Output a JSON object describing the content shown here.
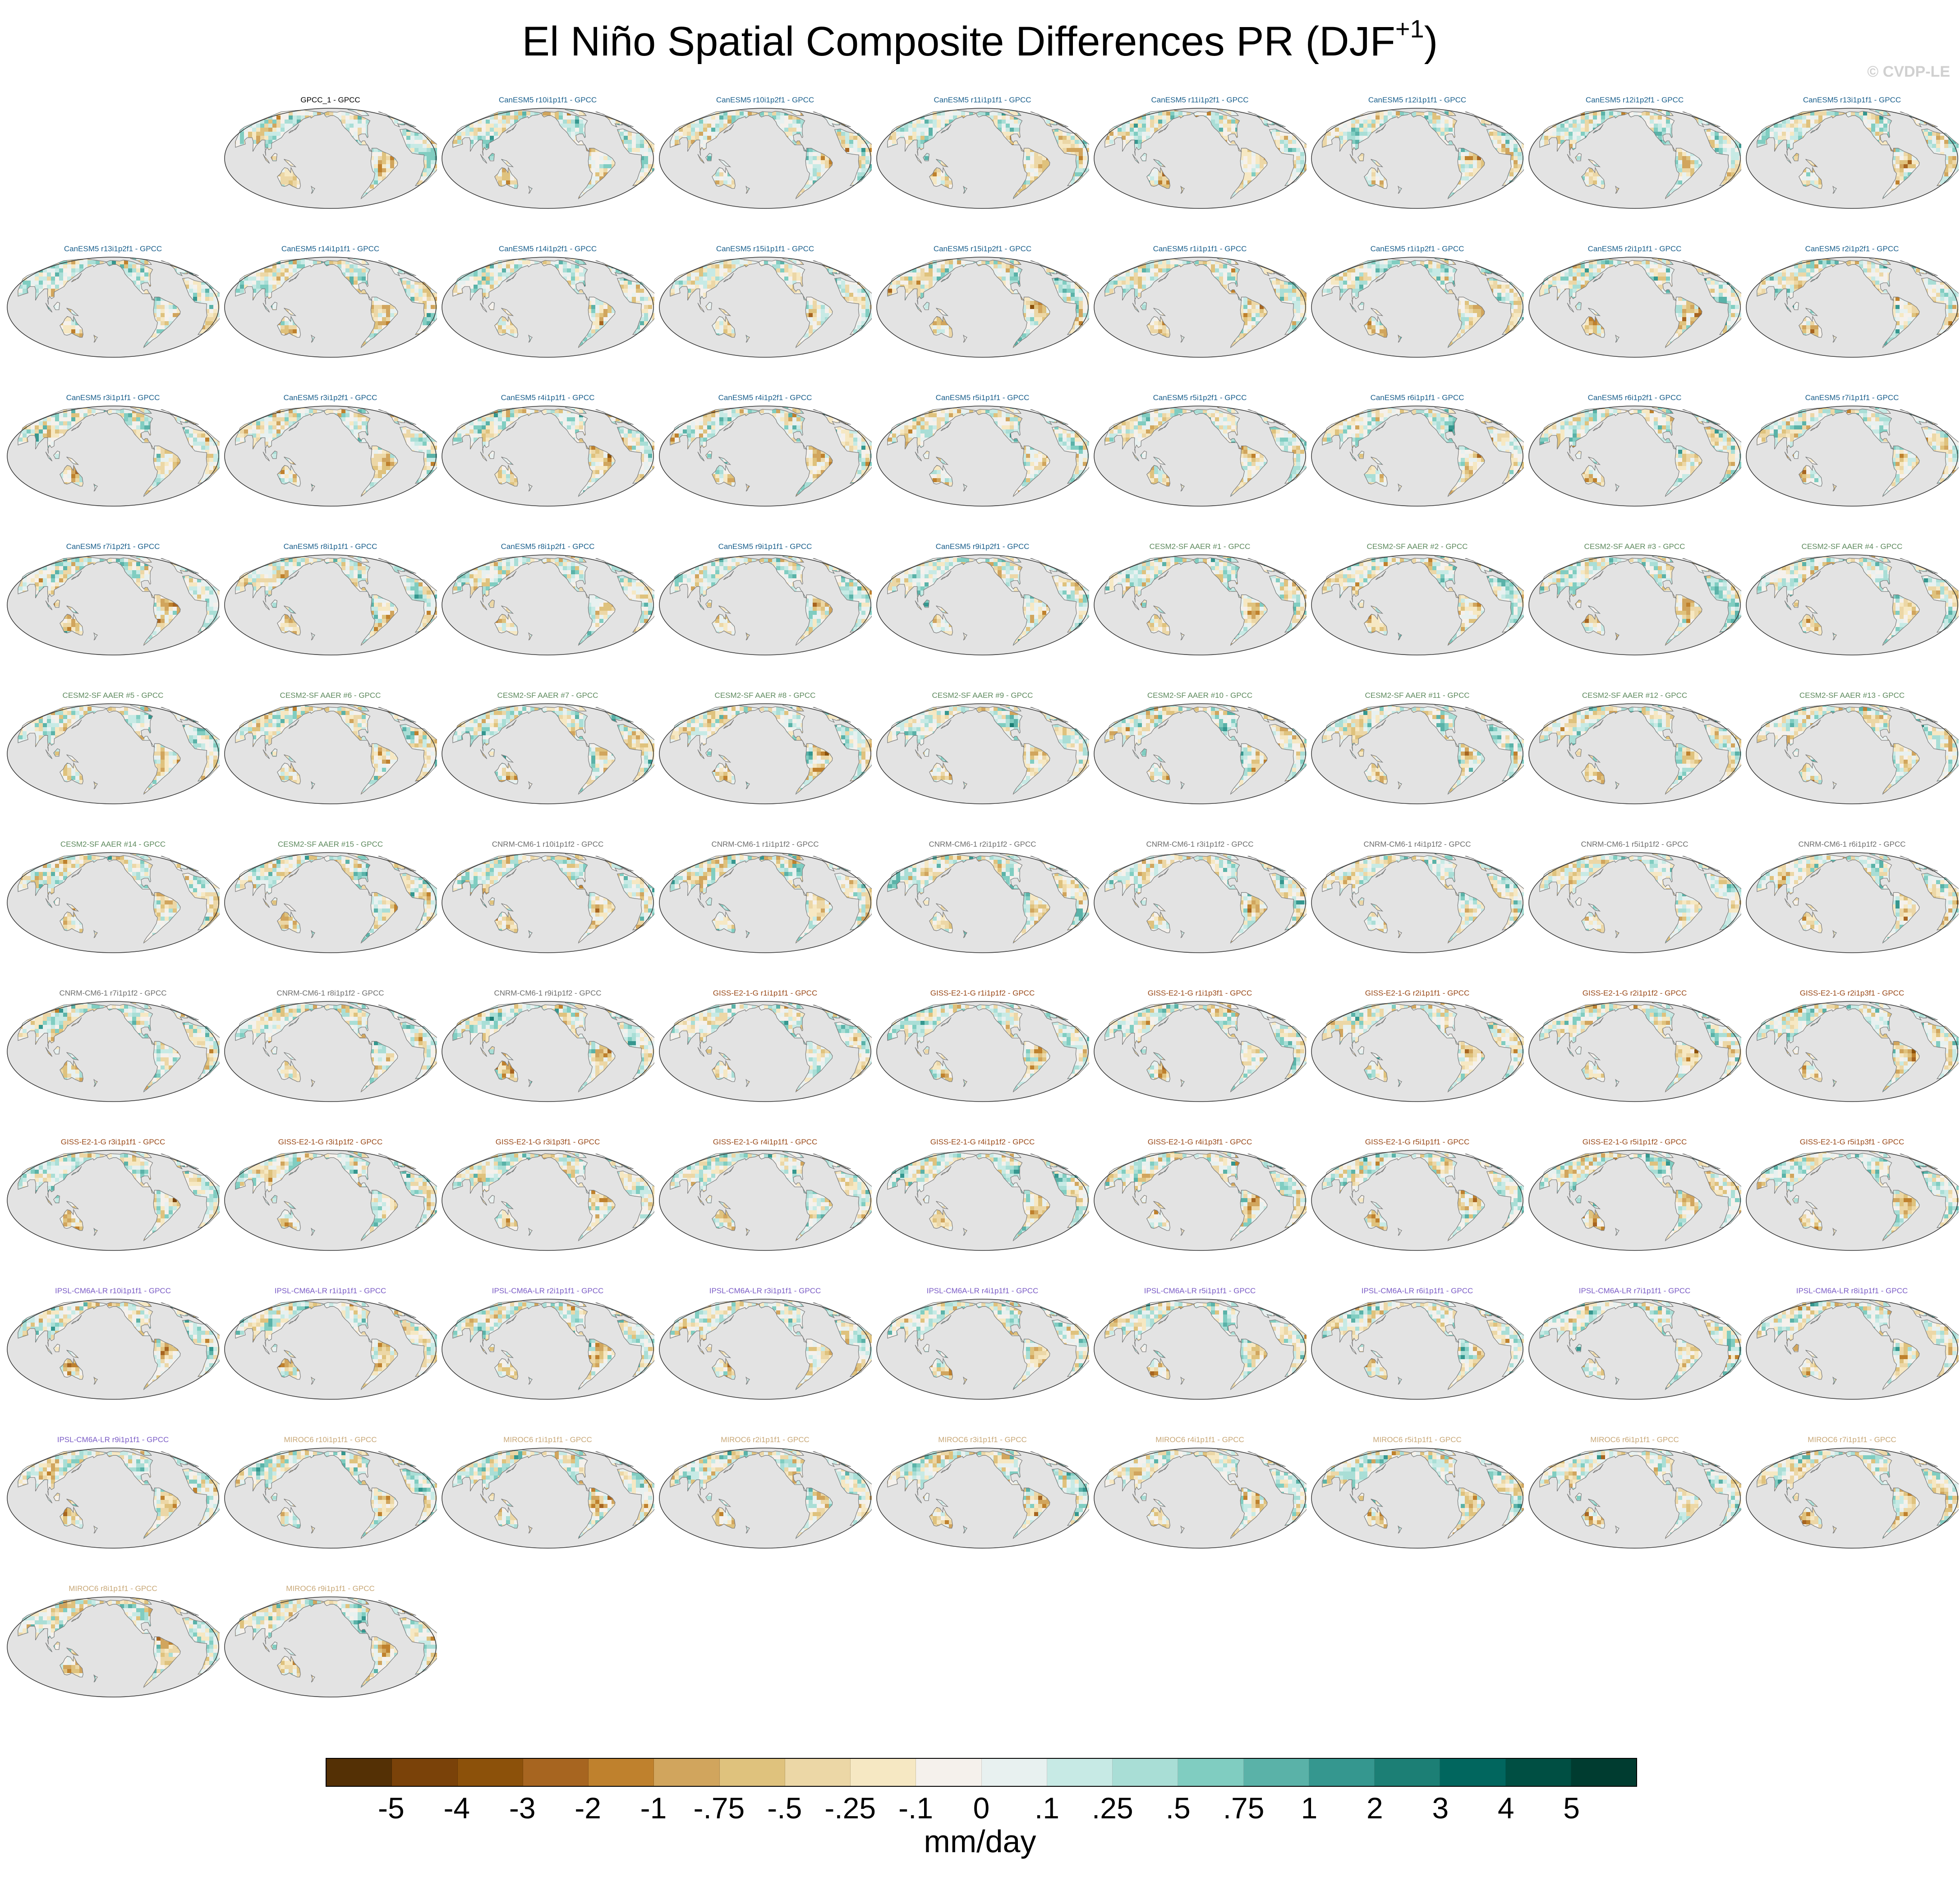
{
  "figure": {
    "title_main": "El Niño Spatial Composite Differences PR (DJF",
    "title_sup": "+1",
    "title_end": ")",
    "watermark": "© CVDP-LE"
  },
  "panels": [
    {
      "label": "GPCC_1 - GPCC",
      "group": "obs"
    },
    {
      "label": "CanESM5 r10i1p1f1 - GPCC",
      "group": "canesm"
    },
    {
      "label": "CanESM5 r10i1p2f1 - GPCC",
      "group": "canesm"
    },
    {
      "label": "CanESM5 r11i1p1f1 - GPCC",
      "group": "canesm"
    },
    {
      "label": "CanESM5 r11i1p2f1 - GPCC",
      "group": "canesm"
    },
    {
      "label": "CanESM5 r12i1p1f1 - GPCC",
      "group": "canesm"
    },
    {
      "label": "CanESM5 r12i1p2f1 - GPCC",
      "group": "canesm"
    },
    {
      "label": "CanESM5 r13i1p1f1 - GPCC",
      "group": "canesm"
    },
    {
      "label": "CanESM5 r13i1p2f1 - GPCC",
      "group": "canesm"
    },
    {
      "label": "CanESM5 r14i1p1f1 - GPCC",
      "group": "canesm"
    },
    {
      "label": "CanESM5 r14i1p2f1 - GPCC",
      "group": "canesm"
    },
    {
      "label": "CanESM5 r15i1p1f1 - GPCC",
      "group": "canesm"
    },
    {
      "label": "CanESM5 r15i1p2f1 - GPCC",
      "group": "canesm"
    },
    {
      "label": "CanESM5 r1i1p1f1 - GPCC",
      "group": "canesm"
    },
    {
      "label": "CanESM5 r1i1p2f1 - GPCC",
      "group": "canesm"
    },
    {
      "label": "CanESM5 r2i1p1f1 - GPCC",
      "group": "canesm"
    },
    {
      "label": "CanESM5 r2i1p2f1 - GPCC",
      "group": "canesm"
    },
    {
      "label": "CanESM5 r3i1p1f1 - GPCC",
      "group": "canesm"
    },
    {
      "label": "CanESM5 r3i1p2f1 - GPCC",
      "group": "canesm"
    },
    {
      "label": "CanESM5 r4i1p1f1 - GPCC",
      "group": "canesm"
    },
    {
      "label": "CanESM5 r4i1p2f1 - GPCC",
      "group": "canesm"
    },
    {
      "label": "CanESM5 r5i1p1f1 - GPCC",
      "group": "canesm"
    },
    {
      "label": "CanESM5 r5i1p2f1 - GPCC",
      "group": "canesm"
    },
    {
      "label": "CanESM5 r6i1p1f1 - GPCC",
      "group": "canesm"
    },
    {
      "label": "CanESM5 r6i1p2f1 - GPCC",
      "group": "canesm"
    },
    {
      "label": "CanESM5 r7i1p1f1 - GPCC",
      "group": "canesm"
    },
    {
      "label": "CanESM5 r7i1p2f1 - GPCC",
      "group": "canesm"
    },
    {
      "label": "CanESM5 r8i1p1f1 - GPCC",
      "group": "canesm"
    },
    {
      "label": "CanESM5 r8i1p2f1 - GPCC",
      "group": "canesm"
    },
    {
      "label": "CanESM5 r9i1p1f1 - GPCC",
      "group": "canesm"
    },
    {
      "label": "CanESM5 r9i1p2f1 - GPCC",
      "group": "canesm"
    },
    {
      "label": "CESM2-SF AAER #1 - GPCC",
      "group": "cesm"
    },
    {
      "label": "CESM2-SF AAER #2 - GPCC",
      "group": "cesm"
    },
    {
      "label": "CESM2-SF AAER #3 - GPCC",
      "group": "cesm"
    },
    {
      "label": "CESM2-SF AAER #4 - GPCC",
      "group": "cesm"
    },
    {
      "label": "CESM2-SF AAER #5 - GPCC",
      "group": "cesm"
    },
    {
      "label": "CESM2-SF AAER #6 - GPCC",
      "group": "cesm"
    },
    {
      "label": "CESM2-SF AAER #7 - GPCC",
      "group": "cesm"
    },
    {
      "label": "CESM2-SF AAER #8 - GPCC",
      "group": "cesm"
    },
    {
      "label": "CESM2-SF AAER #9 - GPCC",
      "group": "cesm"
    },
    {
      "label": "CESM2-SF AAER #10 - GPCC",
      "group": "cesm"
    },
    {
      "label": "CESM2-SF AAER #11 - GPCC",
      "group": "cesm"
    },
    {
      "label": "CESM2-SF AAER #12 - GPCC",
      "group": "cesm"
    },
    {
      "label": "CESM2-SF AAER #13 - GPCC",
      "group": "cesm"
    },
    {
      "label": "CESM2-SF AAER #14 - GPCC",
      "group": "cesm"
    },
    {
      "label": "CESM2-SF AAER #15 - GPCC",
      "group": "cesm"
    },
    {
      "label": "CNRM-CM6-1 r10i1p1f2 - GPCC",
      "group": "cnrm"
    },
    {
      "label": "CNRM-CM6-1 r1i1p1f2 - GPCC",
      "group": "cnrm"
    },
    {
      "label": "CNRM-CM6-1 r2i1p1f2 - GPCC",
      "group": "cnrm"
    },
    {
      "label": "CNRM-CM6-1 r3i1p1f2 - GPCC",
      "group": "cnrm"
    },
    {
      "label": "CNRM-CM6-1 r4i1p1f2 - GPCC",
      "group": "cnrm"
    },
    {
      "label": "CNRM-CM6-1 r5i1p1f2 - GPCC",
      "group": "cnrm"
    },
    {
      "label": "CNRM-CM6-1 r6i1p1f2 - GPCC",
      "group": "cnrm"
    },
    {
      "label": "CNRM-CM6-1 r7i1p1f2 - GPCC",
      "group": "cnrm"
    },
    {
      "label": "CNRM-CM6-1 r8i1p1f2 - GPCC",
      "group": "cnrm"
    },
    {
      "label": "CNRM-CM6-1 r9i1p1f2 - GPCC",
      "group": "cnrm"
    },
    {
      "label": "GISS-E2-1-G r1i1p1f1 - GPCC",
      "group": "giss"
    },
    {
      "label": "GISS-E2-1-G r1i1p1f2 - GPCC",
      "group": "giss"
    },
    {
      "label": "GISS-E2-1-G r1i1p3f1 - GPCC",
      "group": "giss"
    },
    {
      "label": "GISS-E2-1-G r2i1p1f1 - GPCC",
      "group": "giss"
    },
    {
      "label": "GISS-E2-1-G r2i1p1f2 - GPCC",
      "group": "giss"
    },
    {
      "label": "GISS-E2-1-G r2i1p3f1 - GPCC",
      "group": "giss"
    },
    {
      "label": "GISS-E2-1-G r3i1p1f1 - GPCC",
      "group": "giss"
    },
    {
      "label": "GISS-E2-1-G r3i1p1f2 - GPCC",
      "group": "giss"
    },
    {
      "label": "GISS-E2-1-G r3i1p3f1 - GPCC",
      "group": "giss"
    },
    {
      "label": "GISS-E2-1-G r4i1p1f1 - GPCC",
      "group": "giss"
    },
    {
      "label": "GISS-E2-1-G r4i1p1f2 - GPCC",
      "group": "giss"
    },
    {
      "label": "GISS-E2-1-G r4i1p3f1 - GPCC",
      "group": "giss"
    },
    {
      "label": "GISS-E2-1-G r5i1p1f1 - GPCC",
      "group": "giss"
    },
    {
      "label": "GISS-E2-1-G r5i1p1f2 - GPCC",
      "group": "giss"
    },
    {
      "label": "GISS-E2-1-G r5i1p3f1 - GPCC",
      "group": "giss"
    },
    {
      "label": "IPSL-CM6A-LR r10i1p1f1 - GPCC",
      "group": "ipsl"
    },
    {
      "label": "IPSL-CM6A-LR r1i1p1f1 - GPCC",
      "group": "ipsl"
    },
    {
      "label": "IPSL-CM6A-LR r2i1p1f1 - GPCC",
      "group": "ipsl"
    },
    {
      "label": "IPSL-CM6A-LR r3i1p1f1 - GPCC",
      "group": "ipsl"
    },
    {
      "label": "IPSL-CM6A-LR r4i1p1f1 - GPCC",
      "group": "ipsl"
    },
    {
      "label": "IPSL-CM6A-LR r5i1p1f1 - GPCC",
      "group": "ipsl"
    },
    {
      "label": "IPSL-CM6A-LR r6i1p1f1 - GPCC",
      "group": "ipsl"
    },
    {
      "label": "IPSL-CM6A-LR r7i1p1f1 - GPCC",
      "group": "ipsl"
    },
    {
      "label": "IPSL-CM6A-LR r8i1p1f1 - GPCC",
      "group": "ipsl"
    },
    {
      "label": "IPSL-CM6A-LR r9i1p1f1 - GPCC",
      "group": "ipsl"
    },
    {
      "label": "MIROC6 r10i1p1f1 - GPCC",
      "group": "miroc"
    },
    {
      "label": "MIROC6 r1i1p1f1 - GPCC",
      "group": "miroc"
    },
    {
      "label": "MIROC6 r2i1p1f1 - GPCC",
      "group": "miroc"
    },
    {
      "label": "MIROC6 r3i1p1f1 - GPCC",
      "group": "miroc"
    },
    {
      "label": "MIROC6 r4i1p1f1 - GPCC",
      "group": "miroc"
    },
    {
      "label": "MIROC6 r5i1p1f1 - GPCC",
      "group": "miroc"
    },
    {
      "label": "MIROC6 r6i1p1f1 - GPCC",
      "group": "miroc"
    },
    {
      "label": "MIROC6 r7i1p1f1 - GPCC",
      "group": "miroc"
    },
    {
      "label": "MIROC6 r8i1p1f1 - GPCC",
      "group": "miroc"
    },
    {
      "label": "MIROC6 r9i1p1f1 - GPCC",
      "group": "miroc"
    }
  ],
  "group_colors": {
    "obs": "#000000",
    "canesm": "#1a5f8c",
    "cesm": "#5e8a5e",
    "cnrm": "#6e6e6e",
    "giss": "#9a4a1a",
    "ipsl": "#7b5cc6",
    "miroc": "#c8a878"
  },
  "map_colors": {
    "ocean": "#e3e3e3",
    "coast": "#7a7a7a",
    "land_neutral": "#eef3ef",
    "frame": "#333333"
  },
  "colorbar": {
    "colors": [
      "#543005",
      "#7a4209",
      "#8c510a",
      "#a76520",
      "#bf812d",
      "#d1a55d",
      "#dfc27d",
      "#ecd7a6",
      "#f6e8c3",
      "#f5f1ec",
      "#e8f1f0",
      "#c7eae5",
      "#a9ded6",
      "#80cdc1",
      "#5ab2a8",
      "#35978f",
      "#1c7f75",
      "#01665e",
      "#004f43",
      "#003c30"
    ],
    "tick_labels": [
      "-5",
      "-4",
      "-3",
      "-2",
      "-1",
      "-.75",
      "-.5",
      "-.25",
      "-.1",
      "0",
      ".1",
      ".25",
      ".5",
      ".75",
      "1",
      "2",
      "3",
      "4",
      "5"
    ],
    "units": "mm/day"
  }
}
